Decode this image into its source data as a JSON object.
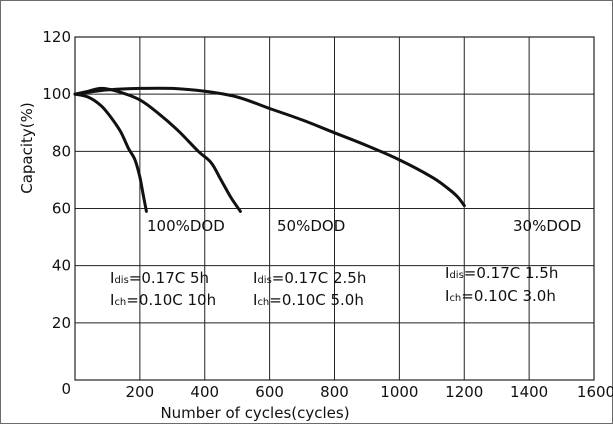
{
  "chart_data": {
    "type": "line",
    "xlabel": "Number of cycles(cycles)",
    "ylabel": "Capacity(%)",
    "xlim": [
      0,
      1600
    ],
    "ylim": [
      0,
      120
    ],
    "x_ticks": [
      "0",
      "200",
      "400",
      "600",
      "800",
      "1000",
      "1200",
      "1400",
      "1600"
    ],
    "y_ticks": [
      "20",
      "40",
      "60",
      "80",
      "100",
      "120"
    ],
    "grid": true,
    "series": [
      {
        "name": "100%DOD",
        "x": [
          0,
          40,
          80,
          110,
          140,
          165,
          185,
          200,
          210,
          220
        ],
        "y": [
          100,
          99,
          96,
          92,
          87,
          81,
          77,
          71,
          65,
          59
        ]
      },
      {
        "name": "50%DOD",
        "x": [
          0,
          40,
          80,
          130,
          200,
          260,
          320,
          380,
          420,
          450,
          480,
          510
        ],
        "y": [
          100,
          101,
          102,
          101,
          98,
          93,
          87,
          80,
          76,
          70,
          64,
          59
        ]
      },
      {
        "name": "30%DOD",
        "x": [
          0,
          100,
          200,
          300,
          400,
          500,
          600,
          700,
          800,
          900,
          1000,
          1100,
          1150,
          1180,
          1200
        ],
        "y": [
          100,
          101.5,
          102,
          102,
          101,
          99,
          95,
          91,
          86.5,
          82,
          77,
          71,
          67,
          64,
          61
        ]
      }
    ],
    "annotations": {
      "dod_labels": [
        "100%DOD",
        "50%DOD",
        "30%DOD"
      ],
      "conditions": [
        {
          "dis_prefix": "I",
          "dis_sub": "dis",
          "dis_value": "=0.17C  5h",
          "ch_prefix": "I",
          "ch_sub": "ch",
          "ch_value": "=0.10C 10h"
        },
        {
          "dis_prefix": "I",
          "dis_sub": "dis",
          "dis_value": "=0.17C  2.5h",
          "ch_prefix": "I",
          "ch_sub": "ch",
          "ch_value": "=0.10C  5.0h"
        },
        {
          "dis_prefix": "I",
          "dis_sub": "dis",
          "dis_value": "=0.17C  1.5h",
          "ch_prefix": "I",
          "ch_sub": "ch",
          "ch_value": "=0.10C  3.0h"
        }
      ]
    }
  },
  "colors": {
    "grid": "#222222",
    "curve": "#111111",
    "background": "#ffffff",
    "frame": "#6b6b6b"
  }
}
